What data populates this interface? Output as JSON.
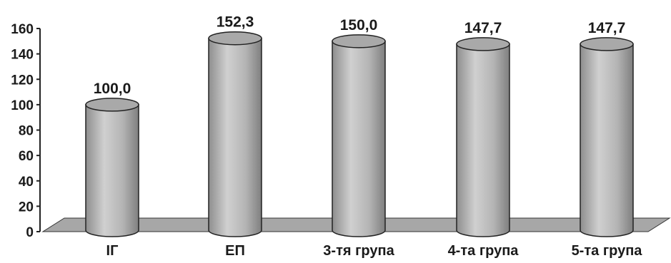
{
  "chart_data": {
    "type": "bar",
    "style": "3d-cylinder",
    "categories": [
      "ІГ",
      "ЕП",
      "3-тя група",
      "4-та група",
      "5-та група"
    ],
    "values": [
      100.0,
      152.3,
      150.0,
      147.7,
      147.7
    ],
    "value_labels": [
      "100,0",
      "152,3",
      "150,0",
      "147,7",
      "147,7"
    ],
    "title": "",
    "xlabel": "",
    "ylabel": "",
    "ylim": [
      0,
      160
    ],
    "yticks": [
      0,
      20,
      40,
      60,
      80,
      100,
      120,
      140,
      160
    ],
    "grid": false,
    "legend": "none",
    "colors": {
      "bar": "#b8b8b8",
      "bar_top": "#a9a9a9",
      "floor": "#a7a7a7",
      "axis": "#222222",
      "text": "#1a1a1a"
    }
  }
}
